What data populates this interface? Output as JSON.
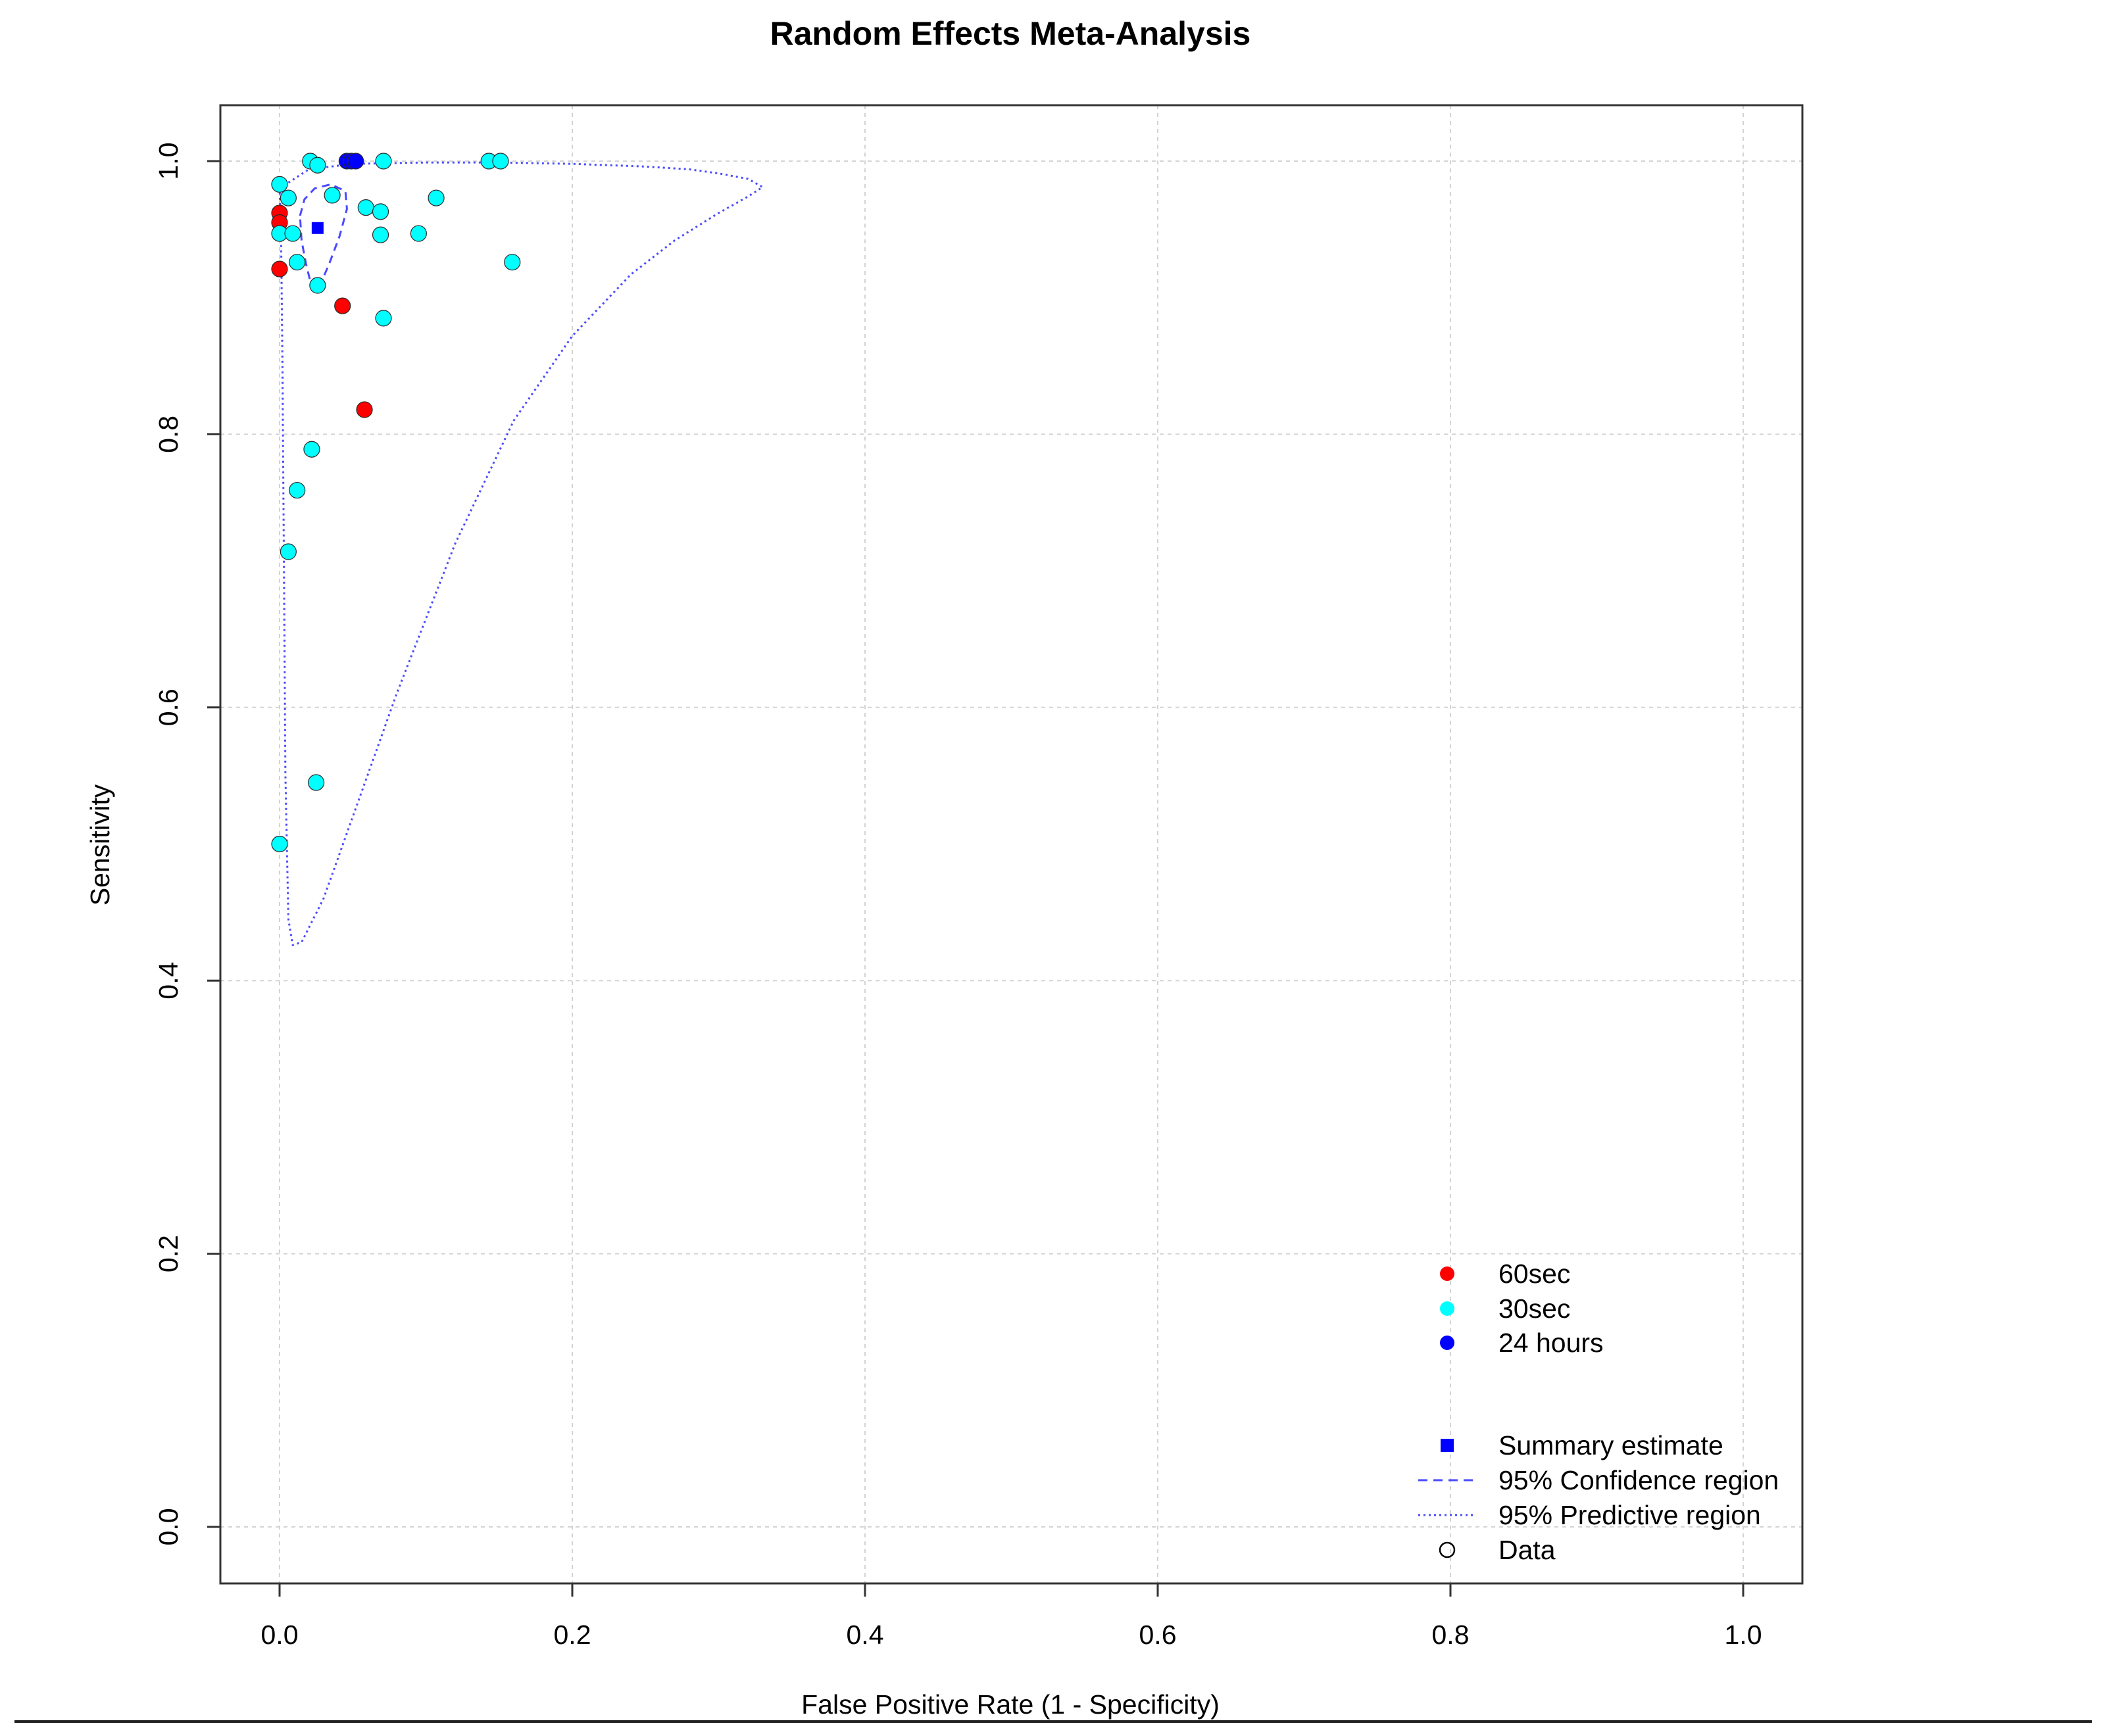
{
  "chart_data": {
    "type": "scatter",
    "title": "Random Effects Meta-Analysis",
    "xlabel": "False Positive Rate (1 - Specificity)",
    "ylabel": "Sensitivity",
    "xlim": [
      0,
      1
    ],
    "ylim": [
      0,
      1
    ],
    "x_ticks": [
      "0.0",
      "0.2",
      "0.4",
      "0.6",
      "0.8",
      "1.0"
    ],
    "y_ticks": [
      "0.0",
      "0.2",
      "0.4",
      "0.6",
      "0.8",
      "1.0"
    ],
    "grid": true,
    "legend_position": "bottom-right",
    "series": [
      {
        "name": "60sec",
        "color": "#ff0000",
        "marker": "circle",
        "points": [
          {
            "x": 0.0,
            "y": 0.962
          },
          {
            "x": 0.0,
            "y": 0.955
          },
          {
            "x": 0.0,
            "y": 0.921
          },
          {
            "x": 0.043,
            "y": 0.894
          },
          {
            "x": 0.058,
            "y": 0.818
          }
        ]
      },
      {
        "name": "30sec",
        "color": "#00ffff",
        "marker": "circle",
        "points": [
          {
            "x": 0.0,
            "y": 0.983
          },
          {
            "x": 0.006,
            "y": 0.973
          },
          {
            "x": 0.0,
            "y": 0.947
          },
          {
            "x": 0.009,
            "y": 0.947
          },
          {
            "x": 0.012,
            "y": 0.926
          },
          {
            "x": 0.021,
            "y": 1.0
          },
          {
            "x": 0.026,
            "y": 0.997
          },
          {
            "x": 0.036,
            "y": 0.975
          },
          {
            "x": 0.026,
            "y": 0.909
          },
          {
            "x": 0.059,
            "y": 0.966
          },
          {
            "x": 0.069,
            "y": 0.963
          },
          {
            "x": 0.069,
            "y": 0.946
          },
          {
            "x": 0.071,
            "y": 1.0
          },
          {
            "x": 0.071,
            "y": 0.885
          },
          {
            "x": 0.095,
            "y": 0.947
          },
          {
            "x": 0.107,
            "y": 0.973
          },
          {
            "x": 0.143,
            "y": 1.0
          },
          {
            "x": 0.151,
            "y": 1.0
          },
          {
            "x": 0.159,
            "y": 0.926
          },
          {
            "x": 0.022,
            "y": 0.789
          },
          {
            "x": 0.012,
            "y": 0.759
          },
          {
            "x": 0.006,
            "y": 0.714
          },
          {
            "x": 0.025,
            "y": 0.545
          },
          {
            "x": 0.0,
            "y": 0.5
          }
        ]
      },
      {
        "name": "24 hours",
        "color": "#0000ff",
        "marker": "circle",
        "points": [
          {
            "x": 0.046,
            "y": 1.0
          },
          {
            "x": 0.049,
            "y": 1.0
          },
          {
            "x": 0.052,
            "y": 1.0
          }
        ]
      }
    ],
    "summary_estimate": {
      "name": "Summary estimate",
      "x": 0.026,
      "y": 0.951,
      "color": "#0000ff",
      "marker": "square"
    },
    "confidence_region": {
      "name": "95% Confidence region",
      "color": "#4a4aff",
      "line_style": "dashed",
      "points": [
        [
          0.014,
          0.96
        ],
        [
          0.017,
          0.972
        ],
        [
          0.024,
          0.98
        ],
        [
          0.035,
          0.983
        ],
        [
          0.045,
          0.978
        ],
        [
          0.046,
          0.965
        ],
        [
          0.041,
          0.945
        ],
        [
          0.034,
          0.925
        ],
        [
          0.028,
          0.91
        ],
        [
          0.024,
          0.905
        ],
        [
          0.021,
          0.912
        ],
        [
          0.018,
          0.925
        ],
        [
          0.015,
          0.942
        ],
        [
          0.014,
          0.96
        ]
      ]
    },
    "predictive_region": {
      "name": "95% Predictive region",
      "color": "#4a4aff",
      "line_style": "dotted",
      "points": [
        [
          0.0,
          0.98
        ],
        [
          0.02,
          0.994
        ],
        [
          0.05,
          0.998
        ],
        [
          0.1,
          0.999
        ],
        [
          0.15,
          0.999
        ],
        [
          0.2,
          0.998
        ],
        [
          0.25,
          0.996
        ],
        [
          0.28,
          0.994
        ],
        [
          0.3,
          0.991
        ],
        [
          0.32,
          0.987
        ],
        [
          0.33,
          0.981
        ],
        [
          0.32,
          0.974
        ],
        [
          0.3,
          0.962
        ],
        [
          0.27,
          0.942
        ],
        [
          0.24,
          0.917
        ],
        [
          0.2,
          0.872
        ],
        [
          0.16,
          0.81
        ],
        [
          0.12,
          0.72
        ],
        [
          0.08,
          0.61
        ],
        [
          0.05,
          0.52
        ],
        [
          0.03,
          0.46
        ],
        [
          0.015,
          0.428
        ],
        [
          0.009,
          0.426
        ],
        [
          0.006,
          0.445
        ],
        [
          0.004,
          0.55
        ],
        [
          0.003,
          0.7
        ],
        [
          0.002,
          0.85
        ],
        [
          0.001,
          0.95
        ],
        [
          0.0,
          0.98
        ]
      ]
    },
    "legend": {
      "groups": [
        "60sec",
        "30sec",
        "24 hours"
      ],
      "summary": [
        "Summary estimate",
        "95% Confidence region",
        "95% Predictive region",
        "Data"
      ]
    }
  }
}
